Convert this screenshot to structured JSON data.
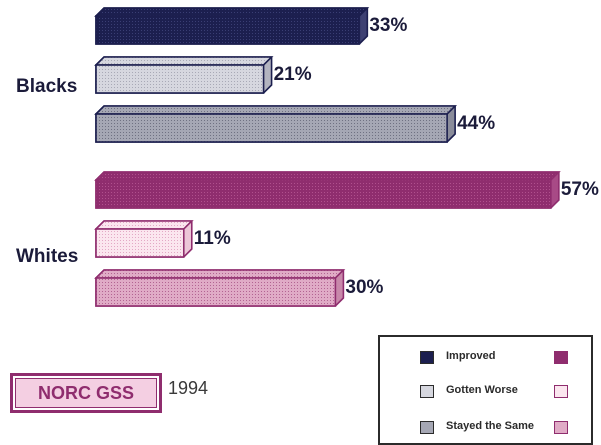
{
  "chart_data": {
    "type": "bar",
    "orientation": "horizontal",
    "categories": [
      "Blacks",
      "Whites"
    ],
    "series": [
      {
        "name": "Improved",
        "values": [
          33,
          57
        ],
        "label_text": [
          "33%",
          "57%"
        ]
      },
      {
        "name": "Gotten Worse",
        "values": [
          21,
          11
        ],
        "label_text": [
          "21%",
          "11%"
        ]
      },
      {
        "name": "Stayed the Same",
        "values": [
          44,
          30
        ],
        "label_text": [
          "44%",
          "30%"
        ]
      }
    ],
    "value_unit": "%",
    "colors": {
      "Blacks": {
        "Improved": "#1c1f4f",
        "Gotten Worse": "#c9cad4",
        "Stayed the Same": "#9a9caa",
        "outline": "#1c1f4f"
      },
      "Whites": {
        "Improved": "#8f2d6e",
        "Gotten Worse": "#f7dbe8",
        "Stayed the Same": "#d89ab9",
        "outline": "#8f2d6e"
      }
    },
    "legend": {
      "position": "bottom-right",
      "entries": [
        "Improved",
        "Gotten Worse",
        "Stayed the Same"
      ]
    },
    "grid": false
  },
  "source": {
    "name": "NORC GSS",
    "year": "1994"
  }
}
